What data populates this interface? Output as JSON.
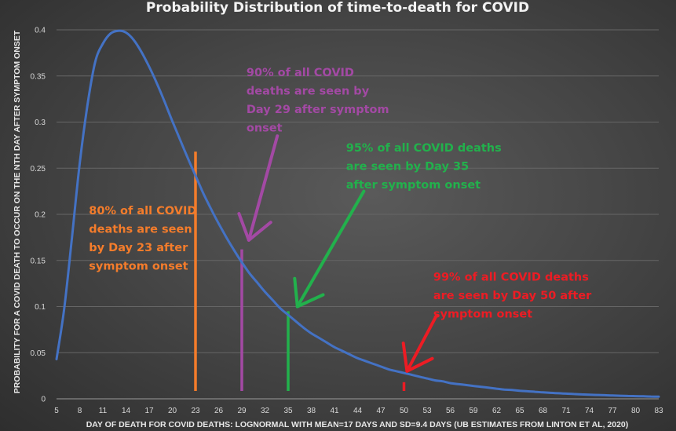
{
  "chart_data": {
    "type": "line",
    "title": "Probability Distribution of time-to-death for COVID",
    "xlabel": "DAY OF DEATH FOR COVID DEATHS: LOGNORMAL WITH MEAN=17 DAYS AND SD=9.4 DAYS (UB ESTIMATES FROM LINTON ET AL, 2020)",
    "ylabel": "PROBABILITY FOR A COVID DEATH TO OCCUR ON THE NTH DAY AFTER SYMPTOM ONSET",
    "xlim": [
      5,
      83
    ],
    "ylim": [
      0,
      0.4
    ],
    "x_tick_labels": [
      "5",
      "8",
      "11",
      "14",
      "17",
      "20",
      "23",
      "26",
      "29",
      "32",
      "35",
      "38",
      "41",
      "44",
      "47",
      "50",
      "53",
      "56",
      "59",
      "62",
      "65",
      "68",
      "71",
      "74",
      "77",
      "80",
      "83"
    ],
    "y_tick_labels": [
      "0",
      "0.05",
      "0.1",
      "0.15",
      "0.2",
      "0.25",
      "0.3",
      "0.35",
      "0.4"
    ],
    "grid": true,
    "series": [
      {
        "color": "#4472c4",
        "x": [
          5,
          6,
          7,
          8,
          9,
          10,
          11,
          12,
          13,
          14,
          15,
          16,
          17,
          18,
          19,
          20,
          21,
          22,
          23,
          24,
          25,
          26,
          27,
          28,
          29,
          30,
          31,
          32,
          33,
          34,
          35,
          36,
          37,
          38,
          39,
          40,
          41,
          42,
          43,
          44,
          45,
          46,
          47,
          48,
          49,
          50,
          51,
          52,
          53,
          54,
          55,
          56,
          57,
          58,
          59,
          60,
          61,
          62,
          63,
          64,
          65,
          66,
          67,
          68,
          69,
          70,
          71,
          72,
          73,
          74,
          75,
          76,
          77,
          78,
          79,
          80,
          81,
          82,
          83
        ],
        "y": [
          0.043,
          0.098,
          0.175,
          0.255,
          0.318,
          0.365,
          0.385,
          0.396,
          0.399,
          0.397,
          0.389,
          0.376,
          0.36,
          0.342,
          0.322,
          0.301,
          0.281,
          0.261,
          0.242,
          0.223,
          0.206,
          0.19,
          0.175,
          0.161,
          0.148,
          0.136,
          0.126,
          0.116,
          0.107,
          0.098,
          0.091,
          0.084,
          0.077,
          0.071,
          0.066,
          0.061,
          0.056,
          0.052,
          0.048,
          0.044,
          0.041,
          0.038,
          0.035,
          0.032,
          0.03,
          0.028,
          0.026,
          0.024,
          0.022,
          0.02,
          0.019,
          0.017,
          0.016,
          0.015,
          0.014,
          0.013,
          0.012,
          0.011,
          0.01,
          0.0095,
          0.0088,
          0.0082,
          0.0076,
          0.007,
          0.0065,
          0.006,
          0.0056,
          0.0052,
          0.0048,
          0.0045,
          0.0042,
          0.0039,
          0.0036,
          0.0033,
          0.0031,
          0.0029,
          0.0027,
          0.0025,
          0.0023
        ]
      }
    ],
    "markers": [
      {
        "x": 23,
        "y_top": 0.268,
        "color": "#f47c2b"
      },
      {
        "x": 29,
        "y_top": 0.162,
        "color": "#a349a4"
      },
      {
        "x": 35,
        "y_top": 0.095,
        "color": "#22b14c"
      },
      {
        "x": 50,
        "y_top": 0.018,
        "color": "#ed1c24"
      }
    ],
    "annotations": [
      {
        "lines": [
          "90% of all COVID",
          "deaths are seen by",
          "Day 29 after symptom",
          "onset"
        ],
        "color": "#a349a4",
        "anchor": [
          29.6,
          0.35
        ]
      },
      {
        "lines": [
          "95% of all COVID deaths",
          "are seen by Day 35",
          "after symptom onset"
        ],
        "color": "#22b14c",
        "anchor": [
          42.5,
          0.268
        ]
      },
      {
        "lines": [
          "80% of all COVID",
          "deaths are seen",
          "by Day 23 after",
          "symptom onset"
        ],
        "color": "#f47c2b",
        "anchor": [
          9.2,
          0.2
        ]
      },
      {
        "lines": [
          "99% of all COVID deaths",
          "are seen by Day 50 after",
          "symptom onset"
        ],
        "color": "#ed1c24",
        "anchor": [
          53.8,
          0.128
        ]
      }
    ],
    "arrows": [
      {
        "from": [
          33.6,
          0.285
        ],
        "to": [
          29.9,
          0.172
        ],
        "color": "#a349a4"
      },
      {
        "from": [
          44.8,
          0.225
        ],
        "to": [
          36.2,
          0.1
        ],
        "color": "#22b14c"
      },
      {
        "from": [
          54.2,
          0.09
        ],
        "to": [
          50.4,
          0.03
        ],
        "color": "#ed1c24"
      }
    ]
  }
}
